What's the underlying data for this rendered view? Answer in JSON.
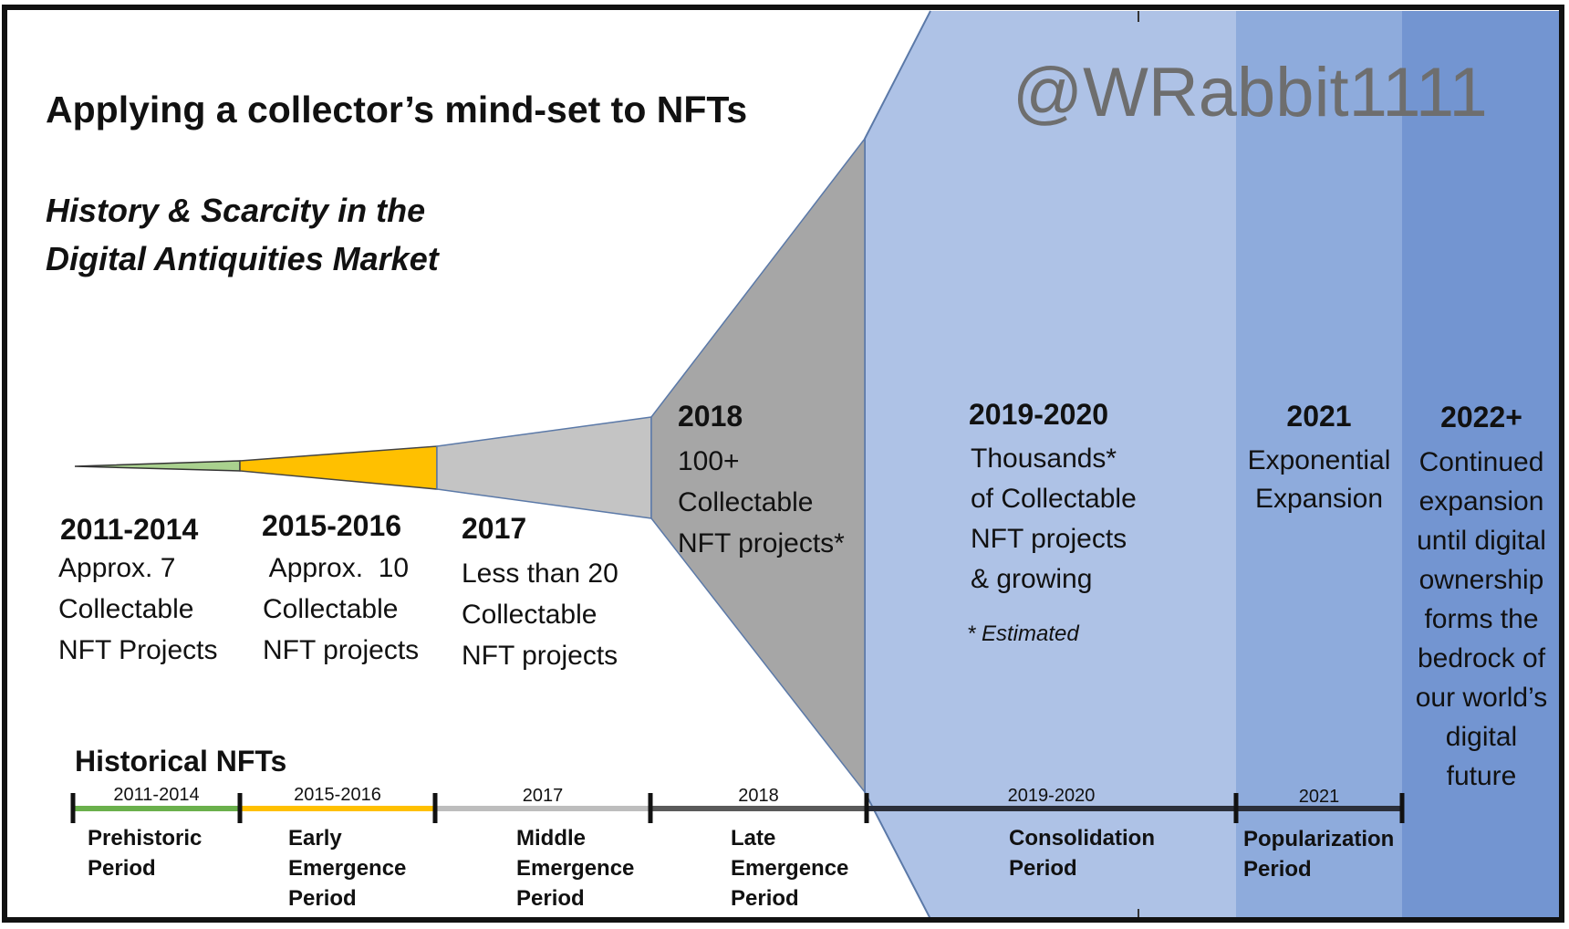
{
  "title": "Applying a collector’s mind-set to NFTs",
  "subtitle_line1": "History & Scarcity in the",
  "subtitle_line2": "Digital Antiquities Market",
  "watermark": "@WRabbit1111",
  "colors": {
    "border": "#111111",
    "green": "#6ab04c",
    "green_fill": "#a9d18e",
    "amber": "#ffc000",
    "light_gray": "#c4c4c4",
    "mid_gray": "#a6a6a6",
    "dark_gray": "#5a5a5a",
    "blue_1": "#aec2e6",
    "blue_2": "#8eabdc",
    "blue_3": "#7395d1",
    "watermark": "#6e6e6e"
  },
  "eras": [
    {
      "years": "2011-2014",
      "desc": "Approx. 7\nCollectable\nNFT Projects",
      "bar_label": "2011-2014",
      "period": "Prehistoric\nPeriod"
    },
    {
      "years": "2015-2016",
      "desc": " Approx.  10\nCollectable\nNFT projects",
      "bar_label": "2015-2016",
      "period": "Early\nEmergence\nPeriod"
    },
    {
      "years": "2017",
      "desc": "Less than 20\nCollectable\nNFT projects",
      "bar_label": "2017",
      "period": "Middle\nEmergence\nPeriod"
    },
    {
      "years": "2018",
      "desc": "100+\nCollectable\nNFT projects*",
      "bar_label": "2018",
      "period": "Late\nEmergence\nPeriod"
    },
    {
      "years": "2019-2020",
      "desc": "Thousands*\nof Collectable\nNFT projects\n& growing",
      "note": "* Estimated",
      "bar_label": "2019-2020",
      "period": "Consolidation\nPeriod"
    },
    {
      "years": "2021",
      "desc": "Exponential\nExpansion",
      "bar_label": "2021",
      "period": "Popularization\nPeriod"
    },
    {
      "years": "2022+",
      "desc": "Continued\nexpansion\nuntil digital\nownership\nforms the\nbedrock of\nour world’s\ndigital\nfuture"
    }
  ],
  "timeline_heading": "Historical NFTs"
}
